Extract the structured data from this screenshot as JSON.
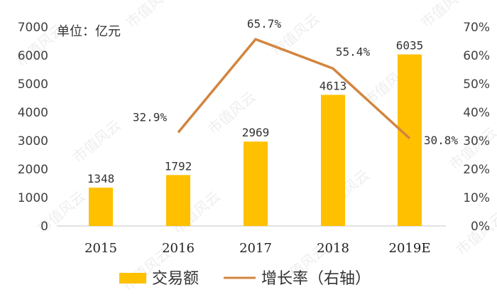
{
  "chart_data": {
    "type": "bar",
    "unit_label": "单位：亿元",
    "categories": [
      "2015",
      "2016",
      "2017",
      "2018",
      "2019E"
    ],
    "series": [
      {
        "name": "交易额",
        "type": "bar",
        "axis": "left",
        "values": [
          1348,
          1792,
          2969,
          4613,
          6035
        ],
        "labels": [
          "1348",
          "1792",
          "2969",
          "4613",
          "6035"
        ]
      },
      {
        "name": "增长率（右轴）",
        "type": "line",
        "axis": "right",
        "values": [
          null,
          32.9,
          65.7,
          55.4,
          30.8
        ],
        "labels": [
          "",
          "32.9%",
          "65.7%",
          "55.4%",
          "30.8%"
        ]
      }
    ],
    "y_left": {
      "min": 0,
      "max": 7000,
      "ticks": [
        "0",
        "1000",
        "2000",
        "3000",
        "4000",
        "5000",
        "6000",
        "7000"
      ]
    },
    "y_right": {
      "min": 0,
      "max": 70,
      "ticks": [
        "0%",
        "10%",
        "20%",
        "30%",
        "40%",
        "50%",
        "60%",
        "70%"
      ]
    },
    "legend_position": "bottom",
    "grid": false,
    "colors": {
      "bar": "#FFC000",
      "line": "#D2853F",
      "axis": "#d9d9d9"
    }
  },
  "watermark": "市值风云"
}
